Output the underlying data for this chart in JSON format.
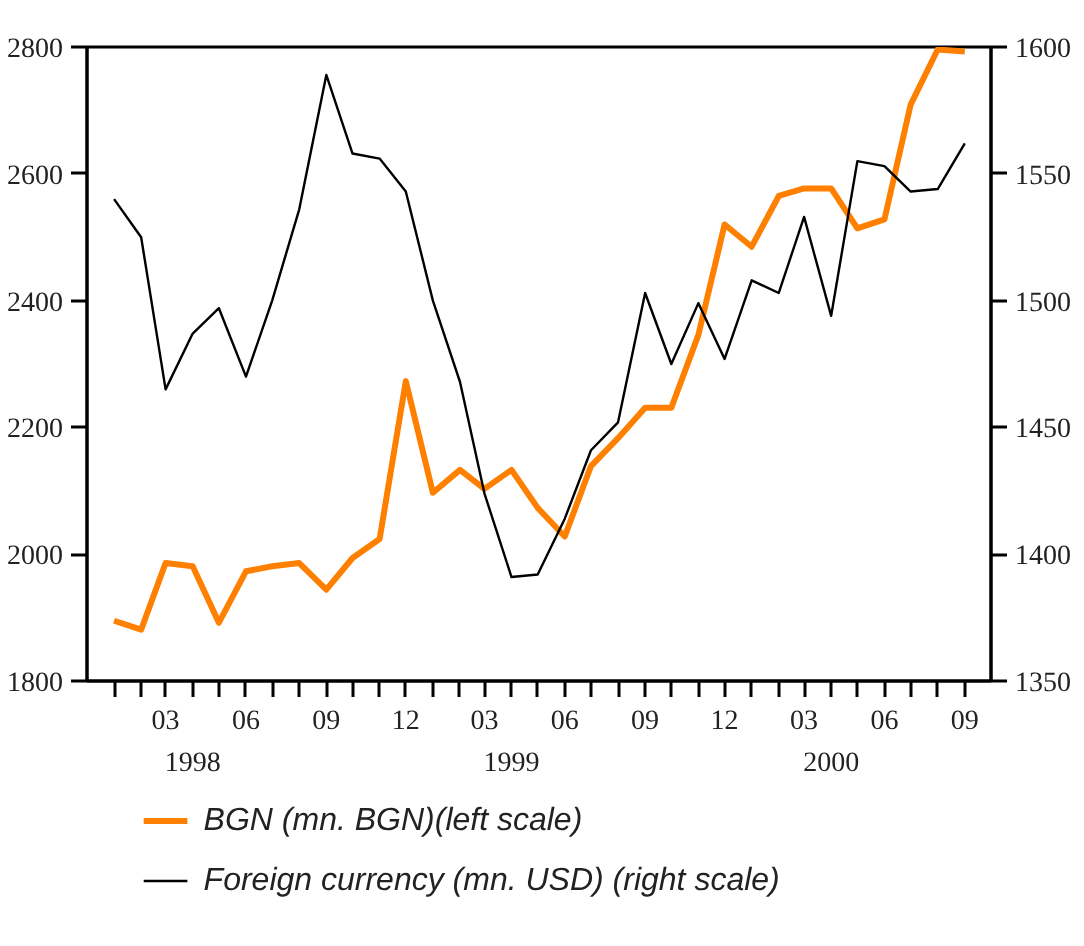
{
  "chart_data": {
    "type": "line",
    "x": [
      "1998-01",
      "1998-02",
      "1998-03",
      "1998-04",
      "1998-05",
      "1998-06",
      "1998-07",
      "1998-08",
      "1998-09",
      "1998-10",
      "1998-11",
      "1998-12",
      "1999-01",
      "1999-02",
      "1999-03",
      "1999-04",
      "1999-05",
      "1999-06",
      "1999-07",
      "1999-08",
      "1999-09",
      "1999-10",
      "1999-11",
      "1999-12",
      "2000-01",
      "2000-02",
      "2000-03",
      "2000-04",
      "2000-05",
      "2000-06",
      "2000-07",
      "2000-08",
      "2000-09"
    ],
    "series": [
      {
        "name": "BGN (mn. BGN)(left scale)",
        "color": "#ff8000",
        "values": [
          1895,
          1881,
          1986,
          1981,
          1892,
          1973,
          1981,
          1986,
          1944,
          1994,
          2024,
          2273,
          2097,
          2133,
          2103,
          2133,
          2073,
          2028,
          2139,
          2183,
          2231,
          2231,
          2346,
          2520,
          2485,
          2565,
          2577,
          2577,
          2514,
          2528,
          2709,
          2796,
          2793
        ]
      },
      {
        "name": "Foreign currency (mn. USD) (right scale)",
        "color": "#000000",
        "axis": "y2",
        "values": [
          1540,
          1525,
          1465,
          1487,
          1497,
          1470,
          1500,
          1536,
          1589,
          1558,
          1556,
          1543,
          1500,
          1468,
          1424,
          1391,
          1392,
          1414,
          1441,
          1452,
          1503,
          1475,
          1499,
          1477,
          1508,
          1503,
          1533,
          1494,
          1555,
          1553,
          1543,
          1544,
          1562
        ]
      }
    ],
    "xlim": [
      "1997-12",
      "2000-10"
    ],
    "xticks": [
      {
        "value": "1998-01",
        "label": null
      },
      {
        "value": "1998-02",
        "label": null
      },
      {
        "value": "1998-03",
        "label": "03"
      },
      {
        "value": "1998-04",
        "label": null
      },
      {
        "value": "1998-05",
        "label": null
      },
      {
        "value": "1998-06",
        "label": "06"
      },
      {
        "value": "1998-07",
        "label": null
      },
      {
        "value": "1998-08",
        "label": null
      },
      {
        "value": "1998-09",
        "label": "09"
      },
      {
        "value": "1998-10",
        "label": null
      },
      {
        "value": "1998-11",
        "label": null
      },
      {
        "value": "1998-12",
        "label": "12"
      },
      {
        "value": "1999-01",
        "label": null
      },
      {
        "value": "1999-02",
        "label": null
      },
      {
        "value": "1999-03",
        "label": "03"
      },
      {
        "value": "1999-04",
        "label": null
      },
      {
        "value": "1999-05",
        "label": null
      },
      {
        "value": "1999-06",
        "label": "06"
      },
      {
        "value": "1999-07",
        "label": null
      },
      {
        "value": "1999-08",
        "label": null
      },
      {
        "value": "1999-09",
        "label": "09"
      },
      {
        "value": "1999-10",
        "label": null
      },
      {
        "value": "1999-11",
        "label": null
      },
      {
        "value": "1999-12",
        "label": "12"
      },
      {
        "value": "2000-01",
        "label": null
      },
      {
        "value": "2000-02",
        "label": null
      },
      {
        "value": "2000-03",
        "label": "03"
      },
      {
        "value": "2000-04",
        "label": null
      },
      {
        "value": "2000-05",
        "label": null
      },
      {
        "value": "2000-06",
        "label": "06"
      },
      {
        "value": "2000-07",
        "label": null
      },
      {
        "value": "2000-08",
        "label": null
      },
      {
        "value": "2000-09",
        "label": "09"
      }
    ],
    "x2lim": [
      "1997-12",
      "2000-10"
    ],
    "x2ticks": [
      {
        "value": "1998-04",
        "label": "1998"
      },
      {
        "value": "1999-04",
        "label": "1999"
      },
      {
        "value": "2000-04",
        "label": "2000"
      }
    ],
    "ylim": [
      1800,
      2800
    ],
    "yticks": [
      1800,
      2000,
      2200,
      2400,
      2600,
      2800
    ],
    "y2lim": [
      1350,
      1600
    ],
    "y2ticks": [
      1350,
      1400,
      1450,
      1500,
      1550,
      1600
    ],
    "grid": false,
    "legend": "bottom",
    "marker": "none",
    "line_style": "solid"
  }
}
